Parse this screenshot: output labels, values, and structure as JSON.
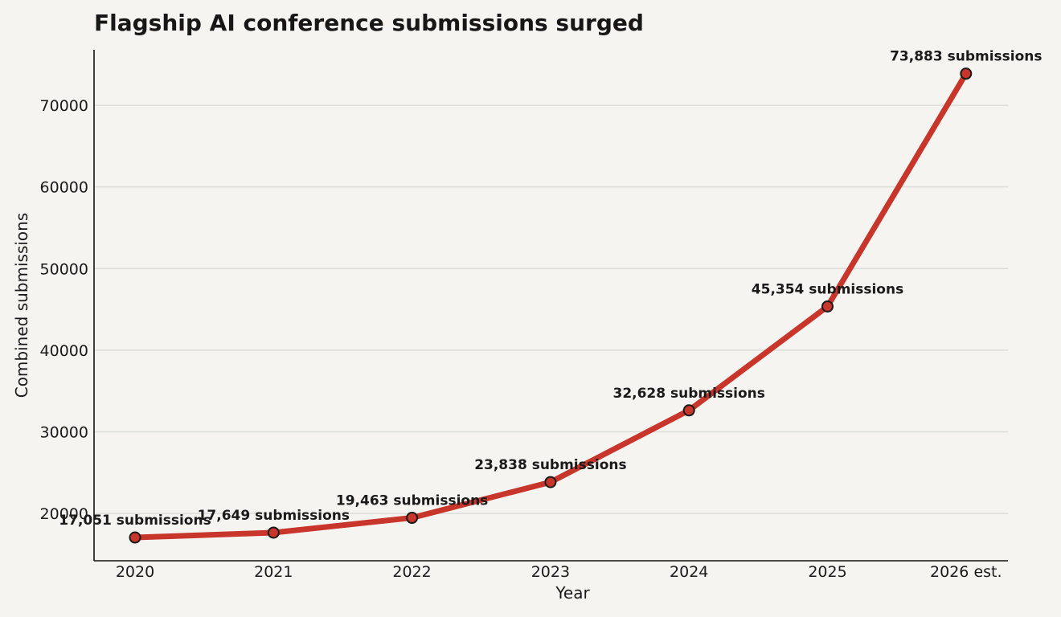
{
  "chart_data": {
    "type": "line",
    "title": "Flagship AI conference submissions surged",
    "xlabel": "Year",
    "ylabel": "Combined submissions",
    "categories": [
      "2020",
      "2021",
      "2022",
      "2023",
      "2024",
      "2025",
      "2026 est."
    ],
    "series": [
      {
        "values": [
          17051,
          17649,
          19463,
          23838,
          32628,
          45354,
          73883
        ],
        "data_labels": [
          "17,051 submissions",
          "17,649 submissions",
          "19,463 submissions",
          "23,838 submissions",
          "32,628 submissions",
          "45,354 submissions",
          "73,883 submissions"
        ]
      }
    ],
    "yticks": [
      20000,
      30000,
      40000,
      50000,
      60000,
      70000
    ],
    "ylim": [
      14200,
      76800
    ],
    "grid": "horizontal",
    "colors": {
      "line": "#c8352a",
      "marker_fill": "#c8352a",
      "marker_stroke": "#1a1a1a",
      "grid": "#dcdcd8",
      "axis": "#111111",
      "background": "#f5f4f0"
    }
  }
}
